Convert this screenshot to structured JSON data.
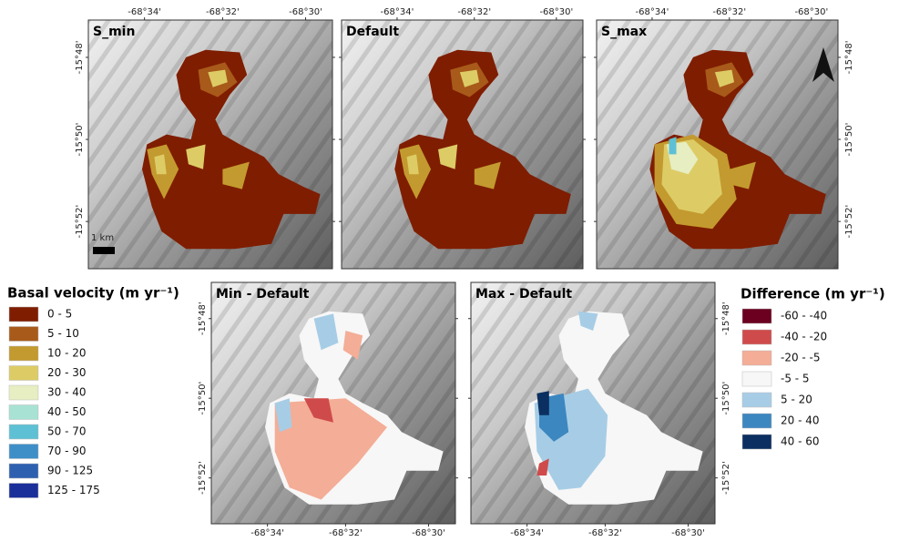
{
  "panels": [
    {
      "title": "S_min",
      "x_ticks": [
        "-68°34'",
        "-68°32'",
        "-68°30'"
      ],
      "y_ticks": [
        "-15°48'",
        "-15°50'",
        "-15°52'"
      ],
      "scale_bar": "1 km"
    },
    {
      "title": "Default",
      "x_ticks": [
        "-68°34'",
        "-68°32'",
        "-68°30'"
      ]
    },
    {
      "title": "S_max",
      "x_ticks": [
        "-68°34'",
        "-68°32'",
        "-68°30'"
      ],
      "y_ticks": [
        "-15°48'",
        "-15°50'",
        "-15°52'"
      ]
    },
    {
      "title": "Min - Default",
      "x_ticks": [
        "-68°34'",
        "-68°32'",
        "-68°30'"
      ],
      "y_ticks": [
        "-15°48'",
        "-15°50'",
        "-15°52'"
      ]
    },
    {
      "title": "Max - Default",
      "x_ticks": [
        "-68°34'",
        "-68°32'",
        "-68°30'"
      ],
      "y_ticks": [
        "-15°48'",
        "-15°50'",
        "-15°52'"
      ]
    }
  ],
  "legends": [
    {
      "title": "Basal velocity (m yr⁻¹)",
      "items": [
        {
          "label": "0 - 5",
          "color": "#7f1d00"
        },
        {
          "label": "5 - 10",
          "color": "#a85a1a"
        },
        {
          "label": "10 - 20",
          "color": "#c39a2f"
        },
        {
          "label": "20 - 30",
          "color": "#ddcc66"
        },
        {
          "label": "30 - 40",
          "color": "#e6eec2"
        },
        {
          "label": "40 - 50",
          "color": "#a8e2d4"
        },
        {
          "label": "50 - 70",
          "color": "#5ec0d4"
        },
        {
          "label": "70 - 90",
          "color": "#3e8ec8"
        },
        {
          "label": "90 - 125",
          "color": "#2e60b0"
        },
        {
          "label": "125 - 175",
          "color": "#1b2f9a"
        }
      ]
    },
    {
      "title": "Difference (m yr⁻¹)",
      "items": [
        {
          "label": "-60 - -40",
          "color": "#6b0020"
        },
        {
          "label": "-40 - -20",
          "color": "#cf4b4b"
        },
        {
          "label": "-20 - -5",
          "color": "#f4ad96"
        },
        {
          "label": "-5 - 5",
          "color": "#f7f7f7"
        },
        {
          "label": "5 - 20",
          "color": "#a7cde6"
        },
        {
          "label": "20 - 40",
          "color": "#3d87c0"
        },
        {
          "label": "40 - 60",
          "color": "#0b2f60"
        }
      ]
    }
  ]
}
